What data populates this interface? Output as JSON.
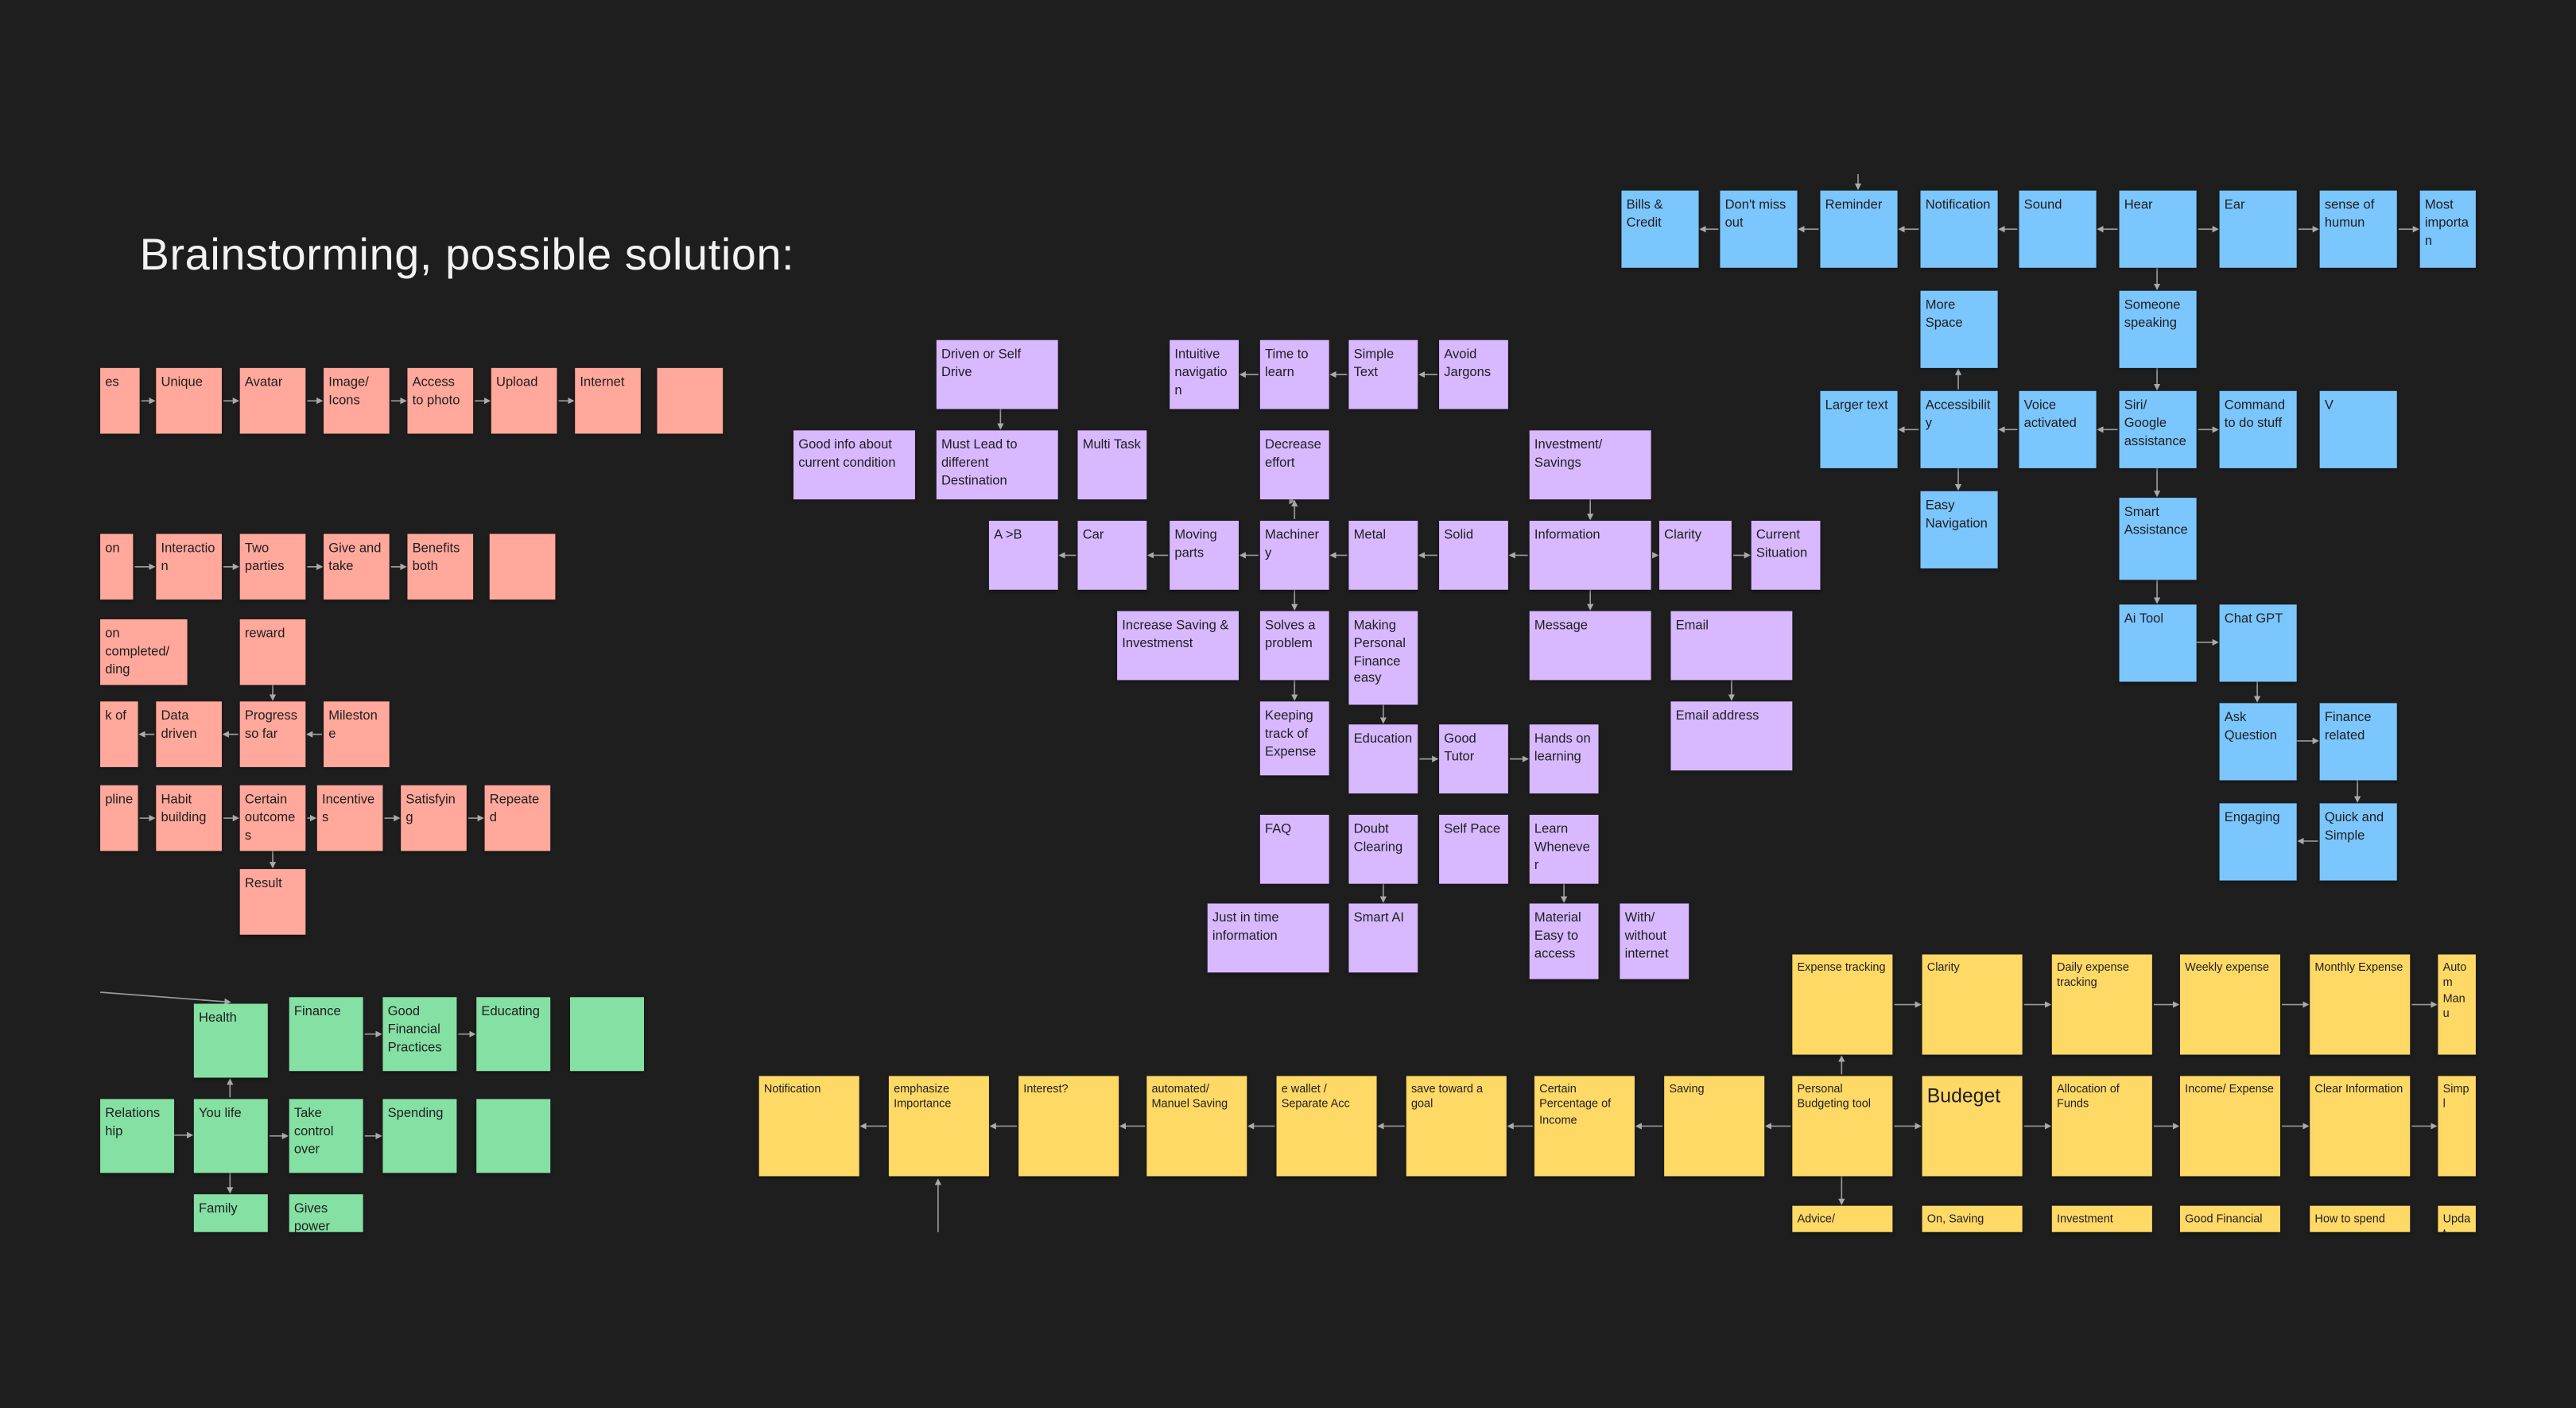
{
  "title": "Brainstorming, possible solution:",
  "notes": {
    "pink": [
      "es",
      "Unique",
      "Avatar",
      "Image/ Icons",
      "Access to photo",
      "Upload",
      "Internet",
      "on",
      "Interaction",
      "Two parties",
      "Give and take",
      "Benefits both",
      "on completed/ ding",
      "reward",
      "k of",
      "Data driven",
      "Progress so far",
      "Milestone",
      "pline",
      "Habit building",
      "Certain outcomes",
      "Incentives",
      "Satisfying",
      "Repeated",
      "Result"
    ],
    "purple": [
      "Driven or Self Drive",
      "Good info about current condition",
      "Must Lead to different Destination",
      "Multi Task",
      "Intuitive navigation",
      "Time to learn",
      "Simple Text",
      "Avoid Jargons",
      "Decrease effort",
      "Investment/ Savings",
      "A >B",
      "Car",
      "Moving parts",
      "Machinery",
      "Metal",
      "Solid",
      "Information",
      "Clarity",
      "Current Situation",
      "Increase Saving & Investmenst",
      "Solves a problem",
      "Making Personal Finance easy",
      "Message",
      "Email",
      "Keeping track of Expense",
      "Email address",
      "Education",
      "Good Tutor",
      "Hands on learning",
      "FAQ",
      "Doubt Clearing",
      "Self Pace",
      "Learn Whenever",
      "Just in time information",
      "Smart AI",
      "Material Easy to access",
      "With/ without internet"
    ],
    "blue": [
      "Bills & Credit",
      "Don't miss out",
      "Reminder",
      "Notification",
      "Sound",
      "Hear",
      "Ear",
      "sense of humun",
      "Most importan",
      "More Space",
      "Someone speaking",
      "Larger text",
      "Accessibility",
      "Voice activated",
      "Siri/ Google assistance",
      "Command to do stuff",
      "V",
      "Easy Navigation",
      "Smart Assistance",
      "Ai Tool",
      "Chat GPT",
      "Ask Question",
      "Finance related",
      "Engaging",
      "Quick and Simple"
    ],
    "green": [
      "Health",
      "Finance",
      "Good Financial Practices",
      "Educating",
      "Relations hip",
      "You life",
      "Take control over",
      "Spending",
      "Family",
      "Gives power"
    ],
    "yellow": [
      "Expense tracking",
      "Clarity",
      "Daily expense tracking",
      "Weekly expense",
      "Monthly Expense",
      "Autom Manu",
      "Notification",
      "emphasize Importance",
      "Interest?",
      "automated/ Manuel Saving",
      "e wallet / Separate Acc",
      "save toward a goal",
      "Certain Percentage of Income",
      "Saving",
      "Personal Budgeting tool",
      "Budeget",
      "Allocation of Funds",
      "Income/ Expense",
      "Clear Information",
      "Simpl",
      "Advice/",
      "On, Saving",
      "Investment",
      "Good Financial",
      "How to spend",
      "Updat"
    ]
  }
}
